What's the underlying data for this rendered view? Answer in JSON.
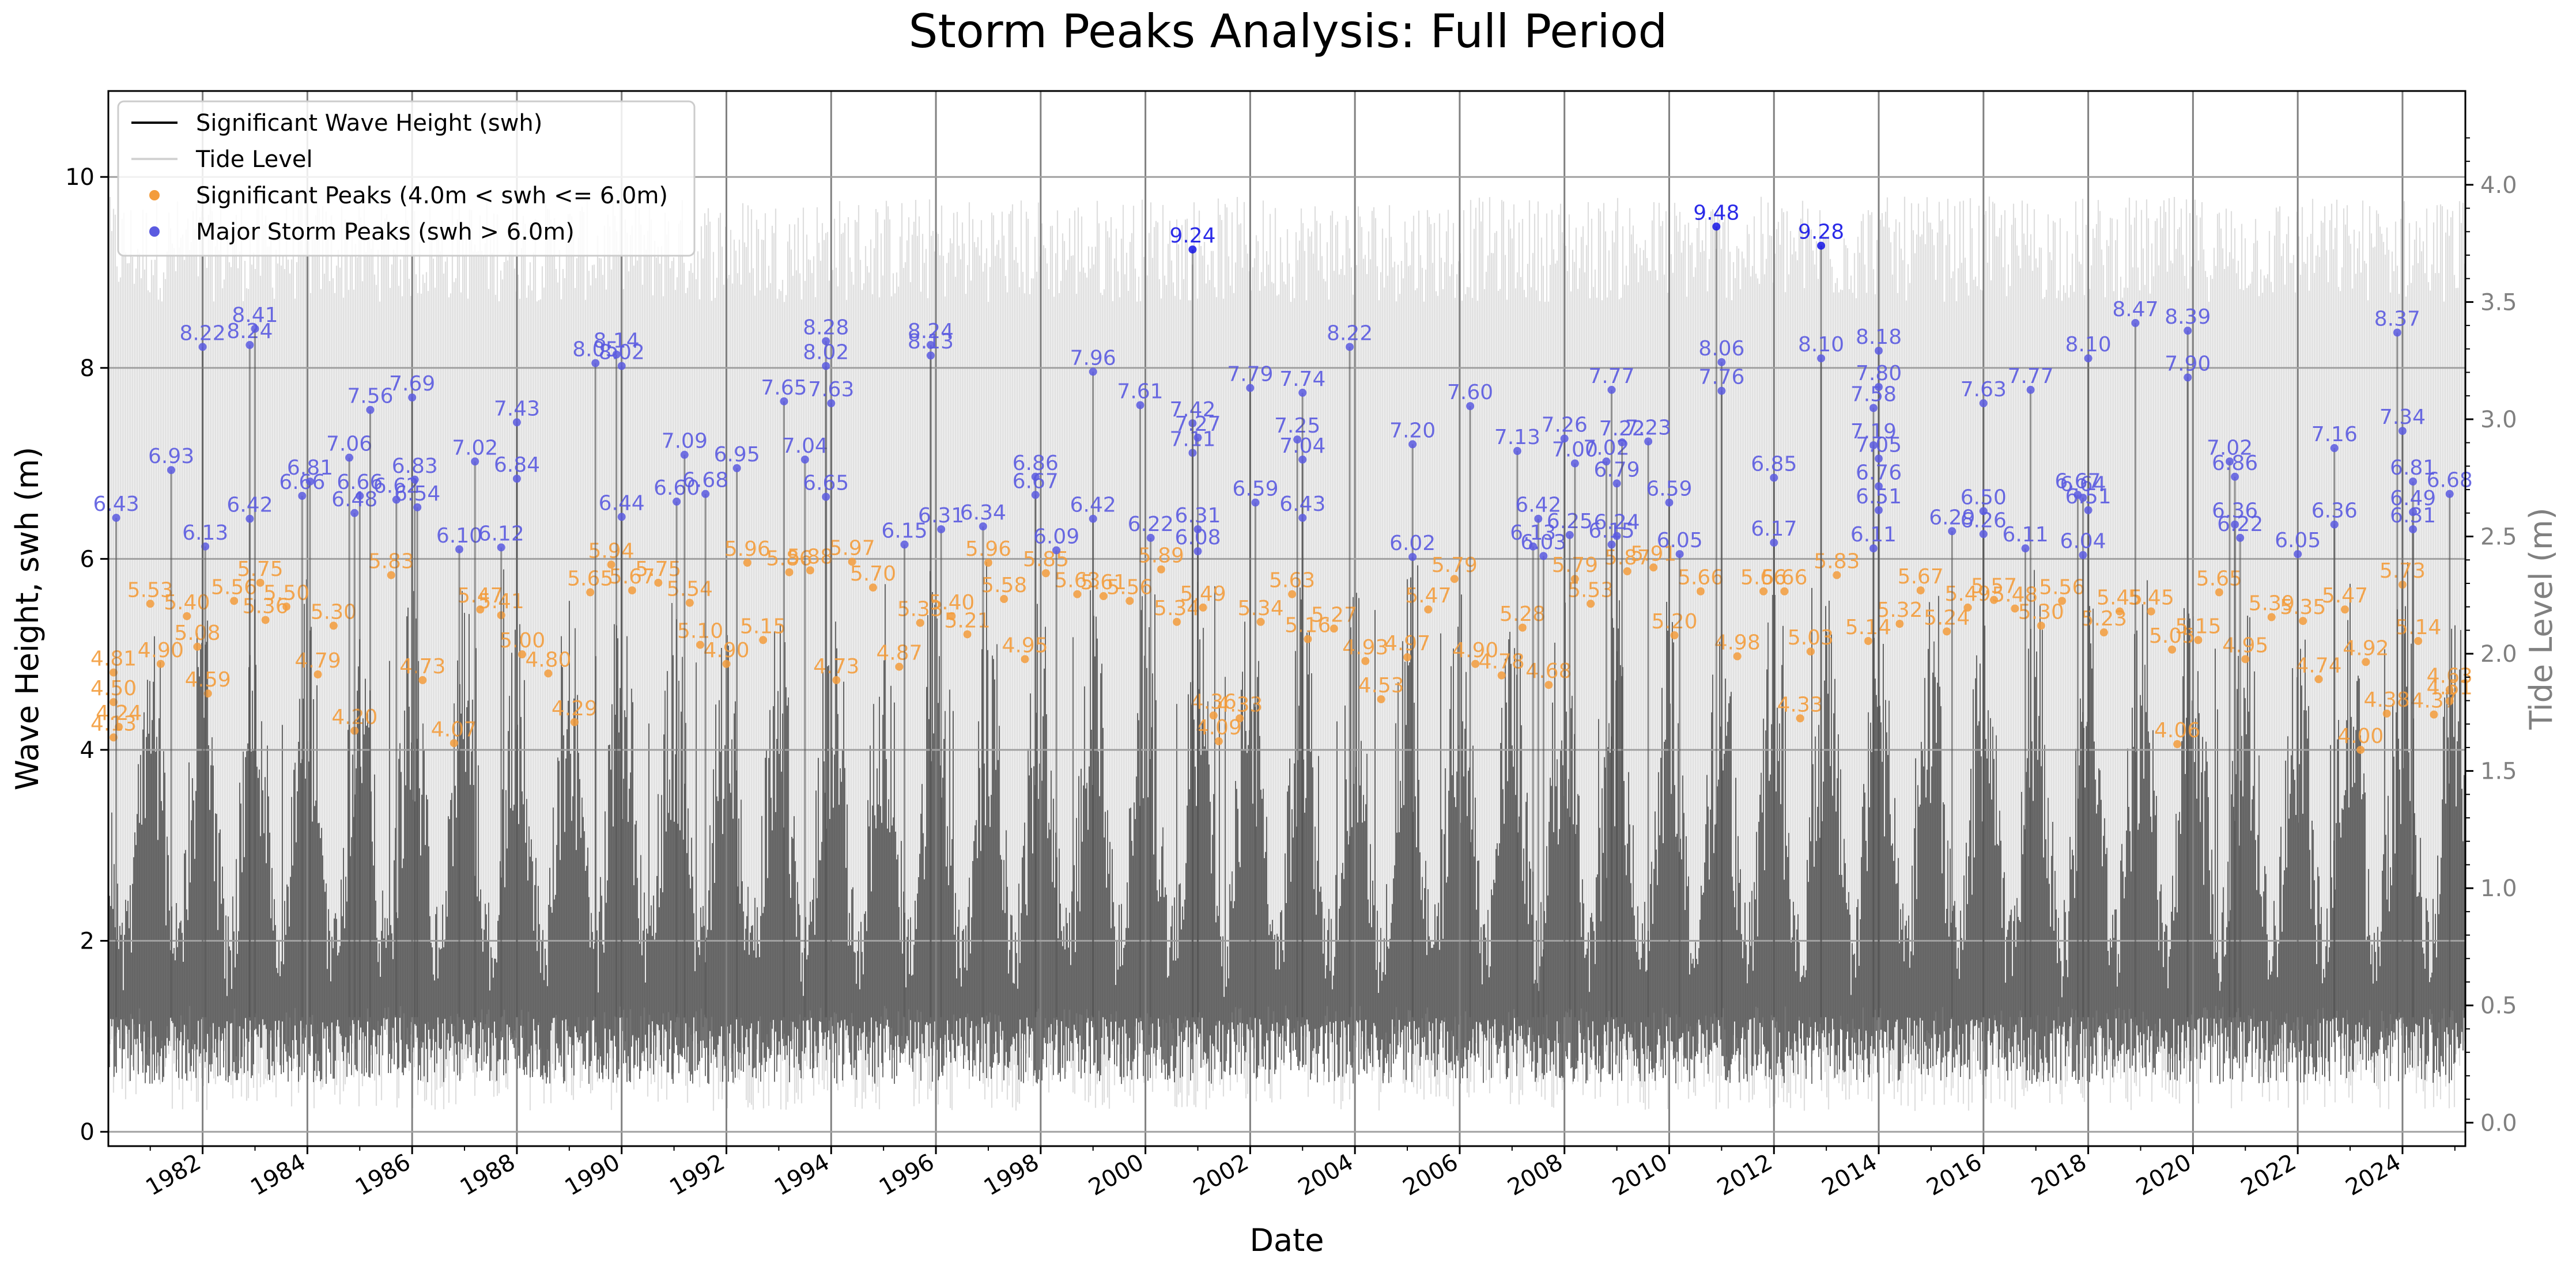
{
  "chart_data": {
    "type": "line",
    "title": "Storm Peaks Analysis: Full Period",
    "xlabel": "Date",
    "ylabel": "Wave Height, swh (m)",
    "y2label": "Tide Level (m)",
    "xlim": [
      1980.2,
      2025.2
    ],
    "ylim": [
      -0.15,
      10.9
    ],
    "y2lim": [
      -0.1,
      4.4
    ],
    "x_ticks": [
      "1982",
      "1984",
      "1986",
      "1988",
      "1990",
      "1992",
      "1994",
      "1996",
      "1998",
      "2000",
      "2002",
      "2004",
      "2006",
      "2008",
      "2010",
      "2012",
      "2014",
      "2016",
      "2018",
      "2020",
      "2022",
      "2024"
    ],
    "y_ticks": [
      "0",
      "2",
      "4",
      "6",
      "8",
      "10"
    ],
    "y2_ticks": [
      "0.0",
      "0.5",
      "1.0",
      "1.5",
      "2.0",
      "2.5",
      "3.0",
      "3.5",
      "4.0"
    ],
    "grid": true,
    "legend": {
      "placement": "top-left",
      "entries": [
        {
          "label": "Significant Wave Height (swh)",
          "color": "#000000",
          "kind": "line"
        },
        {
          "label": "Tide Level",
          "color": "#d3d3d3",
          "kind": "line"
        },
        {
          "label": "Significant Peaks (4.0m < swh <= 6.0m)",
          "color": "#f39c3c",
          "kind": "dot"
        },
        {
          "label": "Major Storm Peaks (swh > 6.0m)",
          "color": "#5a5ae0",
          "kind": "dot"
        }
      ]
    },
    "colors": {
      "swh": "#000000",
      "tide": "#d3d3d3",
      "significant": "#f39c3c",
      "major": "#5a5ae0",
      "major_extreme": "#1414e6"
    },
    "series": [
      {
        "name": "Major Storm Peaks (swh > 6.0m)",
        "points": [
          {
            "x": 1980.35,
            "y": 6.43
          },
          {
            "x": 1981.4,
            "y": 6.93
          },
          {
            "x": 1982.05,
            "y": 6.13
          },
          {
            "x": 1982.0,
            "y": 8.22
          },
          {
            "x": 1982.9,
            "y": 8.24
          },
          {
            "x": 1983.0,
            "y": 8.41
          },
          {
            "x": 1982.9,
            "y": 6.42
          },
          {
            "x": 1983.9,
            "y": 6.66
          },
          {
            "x": 1984.05,
            "y": 6.81
          },
          {
            "x": 1984.8,
            "y": 7.06
          },
          {
            "x": 1985.0,
            "y": 6.66
          },
          {
            "x": 1984.9,
            "y": 6.48
          },
          {
            "x": 1985.2,
            "y": 7.56
          },
          {
            "x": 1986.0,
            "y": 7.69
          },
          {
            "x": 1985.7,
            "y": 6.62
          },
          {
            "x": 1986.05,
            "y": 6.83
          },
          {
            "x": 1986.1,
            "y": 6.54
          },
          {
            "x": 1986.9,
            "y": 6.1
          },
          {
            "x": 1987.2,
            "y": 7.02
          },
          {
            "x": 1988.0,
            "y": 7.43
          },
          {
            "x": 1988.0,
            "y": 6.84
          },
          {
            "x": 1987.7,
            "y": 6.12
          },
          {
            "x": 1989.5,
            "y": 8.05
          },
          {
            "x": 1989.9,
            "y": 8.14
          },
          {
            "x": 1990.0,
            "y": 8.02
          },
          {
            "x": 1990.0,
            "y": 6.44
          },
          {
            "x": 1991.05,
            "y": 6.6
          },
          {
            "x": 1991.2,
            "y": 7.09
          },
          {
            "x": 1991.6,
            "y": 6.68
          },
          {
            "x": 1992.2,
            "y": 6.95
          },
          {
            "x": 1993.1,
            "y": 7.65
          },
          {
            "x": 1993.5,
            "y": 7.04
          },
          {
            "x": 1993.9,
            "y": 8.28
          },
          {
            "x": 1993.9,
            "y": 8.02
          },
          {
            "x": 1994.0,
            "y": 7.63
          },
          {
            "x": 1993.9,
            "y": 6.65
          },
          {
            "x": 1995.4,
            "y": 6.15
          },
          {
            "x": 1995.9,
            "y": 8.24
          },
          {
            "x": 1995.9,
            "y": 8.13
          },
          {
            "x": 1996.1,
            "y": 6.31
          },
          {
            "x": 1996.9,
            "y": 6.34
          },
          {
            "x": 1997.9,
            "y": 6.86
          },
          {
            "x": 1997.9,
            "y": 6.67
          },
          {
            "x": 1998.3,
            "y": 6.09
          },
          {
            "x": 1999.0,
            "y": 7.96
          },
          {
            "x": 1999.0,
            "y": 6.42
          },
          {
            "x": 1999.9,
            "y": 7.61
          },
          {
            "x": 2000.1,
            "y": 6.22
          },
          {
            "x": 2000.9,
            "y": 7.42
          },
          {
            "x": 2001.0,
            "y": 7.27
          },
          {
            "x": 2000.9,
            "y": 7.11
          },
          {
            "x": 2001.0,
            "y": 6.31
          },
          {
            "x": 2001.0,
            "y": 6.08
          },
          {
            "x": 2002.0,
            "y": 7.79
          },
          {
            "x": 2002.1,
            "y": 6.59
          },
          {
            "x": 2002.9,
            "y": 7.25
          },
          {
            "x": 2003.0,
            "y": 7.74
          },
          {
            "x": 2003.0,
            "y": 7.04
          },
          {
            "x": 2003.0,
            "y": 6.43
          },
          {
            "x": 2003.9,
            "y": 8.22
          },
          {
            "x": 2005.1,
            "y": 7.2
          },
          {
            "x": 2005.1,
            "y": 6.02
          },
          {
            "x": 2006.2,
            "y": 7.6
          },
          {
            "x": 2007.1,
            "y": 7.13
          },
          {
            "x": 2007.5,
            "y": 6.42
          },
          {
            "x": 2007.4,
            "y": 6.13
          },
          {
            "x": 2007.6,
            "y": 6.03
          },
          {
            "x": 2008.1,
            "y": 6.25
          },
          {
            "x": 2008.0,
            "y": 7.26
          },
          {
            "x": 2008.2,
            "y": 7.0
          },
          {
            "x": 2008.9,
            "y": 7.77
          },
          {
            "x": 2008.8,
            "y": 7.02
          },
          {
            "x": 2009.0,
            "y": 6.79
          },
          {
            "x": 2009.1,
            "y": 7.22
          },
          {
            "x": 2009.6,
            "y": 7.23
          },
          {
            "x": 2009.0,
            "y": 6.24
          },
          {
            "x": 2008.9,
            "y": 6.15
          },
          {
            "x": 2010.0,
            "y": 6.59
          },
          {
            "x": 2010.2,
            "y": 6.05
          },
          {
            "x": 2010.9,
            "y": 9.48
          },
          {
            "x": 2011.0,
            "y": 8.06
          },
          {
            "x": 2011.0,
            "y": 7.76
          },
          {
            "x": 2012.0,
            "y": 6.85
          },
          {
            "x": 2012.0,
            "y": 6.17
          },
          {
            "x": 2012.9,
            "y": 9.28
          },
          {
            "x": 2012.9,
            "y": 8.1
          },
          {
            "x": 2014.0,
            "y": 8.18
          },
          {
            "x": 2014.0,
            "y": 7.8
          },
          {
            "x": 2013.9,
            "y": 7.58
          },
          {
            "x": 2013.9,
            "y": 7.19
          },
          {
            "x": 2014.0,
            "y": 7.05
          },
          {
            "x": 2014.0,
            "y": 6.76
          },
          {
            "x": 2014.0,
            "y": 6.51
          },
          {
            "x": 2013.9,
            "y": 6.11
          },
          {
            "x": 2015.4,
            "y": 6.29
          },
          {
            "x": 2016.0,
            "y": 7.63
          },
          {
            "x": 2016.0,
            "y": 6.5
          },
          {
            "x": 2016.0,
            "y": 6.26
          },
          {
            "x": 2016.9,
            "y": 7.77
          },
          {
            "x": 2016.8,
            "y": 6.11
          },
          {
            "x": 2017.8,
            "y": 6.67
          },
          {
            "x": 2017.9,
            "y": 6.64
          },
          {
            "x": 2018.0,
            "y": 8.1
          },
          {
            "x": 2018.0,
            "y": 6.51
          },
          {
            "x": 2017.9,
            "y": 6.04
          },
          {
            "x": 2018.9,
            "y": 8.47
          },
          {
            "x": 2019.9,
            "y": 8.39
          },
          {
            "x": 2019.9,
            "y": 7.9
          },
          {
            "x": 2020.7,
            "y": 7.02
          },
          {
            "x": 2020.8,
            "y": 6.86
          },
          {
            "x": 2020.8,
            "y": 6.36
          },
          {
            "x": 2020.9,
            "y": 6.22
          },
          {
            "x": 2022.0,
            "y": 6.05
          },
          {
            "x": 2022.7,
            "y": 7.16
          },
          {
            "x": 2022.7,
            "y": 6.36
          },
          {
            "x": 2023.9,
            "y": 8.37
          },
          {
            "x": 2024.0,
            "y": 7.34
          },
          {
            "x": 2024.2,
            "y": 6.81
          },
          {
            "x": 2024.2,
            "y": 6.49
          },
          {
            "x": 2024.2,
            "y": 6.31
          },
          {
            "x": 2024.9,
            "y": 6.68
          },
          {
            "x": 2000.9,
            "y": 9.24
          }
        ]
      },
      {
        "name": "Significant Peaks (4.0m < swh <= 6.0m)",
        "points": [
          {
            "x": 1980.3,
            "y": 4.81
          },
          {
            "x": 1980.3,
            "y": 4.5
          },
          {
            "x": 1980.4,
            "y": 4.24
          },
          {
            "x": 1980.3,
            "y": 4.13
          },
          {
            "x": 1981.0,
            "y": 5.53
          },
          {
            "x": 1981.2,
            "y": 4.9
          },
          {
            "x": 1981.7,
            "y": 5.4
          },
          {
            "x": 1981.9,
            "y": 5.08
          },
          {
            "x": 1982.1,
            "y": 4.59
          },
          {
            "x": 1982.6,
            "y": 5.56
          },
          {
            "x": 1983.1,
            "y": 5.75
          },
          {
            "x": 1983.2,
            "y": 5.36
          },
          {
            "x": 1983.6,
            "y": 5.5
          },
          {
            "x": 1984.2,
            "y": 4.79
          },
          {
            "x": 1984.5,
            "y": 5.3
          },
          {
            "x": 1984.9,
            "y": 4.2
          },
          {
            "x": 1985.6,
            "y": 5.83
          },
          {
            "x": 1986.2,
            "y": 4.73
          },
          {
            "x": 1986.8,
            "y": 4.07
          },
          {
            "x": 1987.3,
            "y": 5.47
          },
          {
            "x": 1987.7,
            "y": 5.41
          },
          {
            "x": 1988.1,
            "y": 5.0
          },
          {
            "x": 1988.6,
            "y": 4.8
          },
          {
            "x": 1989.1,
            "y": 4.29
          },
          {
            "x": 1989.4,
            "y": 5.65
          },
          {
            "x": 1989.8,
            "y": 5.94
          },
          {
            "x": 1990.2,
            "y": 5.67
          },
          {
            "x": 1990.7,
            "y": 5.75
          },
          {
            "x": 1991.3,
            "y": 5.54
          },
          {
            "x": 1991.5,
            "y": 5.1
          },
          {
            "x": 1992.0,
            "y": 4.9
          },
          {
            "x": 1992.4,
            "y": 5.96
          },
          {
            "x": 1992.7,
            "y": 5.15
          },
          {
            "x": 1993.2,
            "y": 5.86
          },
          {
            "x": 1993.6,
            "y": 5.88
          },
          {
            "x": 1994.1,
            "y": 4.73
          },
          {
            "x": 1994.4,
            "y": 5.97
          },
          {
            "x": 1994.8,
            "y": 5.7
          },
          {
            "x": 1995.3,
            "y": 4.87
          },
          {
            "x": 1995.7,
            "y": 5.33
          },
          {
            "x": 1996.3,
            "y": 5.4
          },
          {
            "x": 1996.6,
            "y": 5.21
          },
          {
            "x": 1997.0,
            "y": 5.96
          },
          {
            "x": 1997.3,
            "y": 5.58
          },
          {
            "x": 1997.7,
            "y": 4.95
          },
          {
            "x": 1998.1,
            "y": 5.85
          },
          {
            "x": 1998.7,
            "y": 5.63
          },
          {
            "x": 1999.2,
            "y": 5.61
          },
          {
            "x": 1999.7,
            "y": 5.56
          },
          {
            "x": 2000.3,
            "y": 5.89
          },
          {
            "x": 2000.6,
            "y": 5.34
          },
          {
            "x": 2001.1,
            "y": 5.49
          },
          {
            "x": 2001.3,
            "y": 4.36
          },
          {
            "x": 2001.8,
            "y": 4.33
          },
          {
            "x": 2002.2,
            "y": 5.34
          },
          {
            "x": 2002.8,
            "y": 5.63
          },
          {
            "x": 2003.1,
            "y": 5.16
          },
          {
            "x": 2003.6,
            "y": 5.27
          },
          {
            "x": 2004.2,
            "y": 4.93
          },
          {
            "x": 2004.5,
            "y": 4.53
          },
          {
            "x": 2005.0,
            "y": 4.97
          },
          {
            "x": 2005.4,
            "y": 5.47
          },
          {
            "x": 2005.9,
            "y": 5.79
          },
          {
            "x": 2006.3,
            "y": 4.9
          },
          {
            "x": 2006.8,
            "y": 4.78
          },
          {
            "x": 2007.2,
            "y": 5.28
          },
          {
            "x": 2007.7,
            "y": 4.68
          },
          {
            "x": 2008.2,
            "y": 5.79
          },
          {
            "x": 2008.5,
            "y": 5.53
          },
          {
            "x": 2009.2,
            "y": 5.87
          },
          {
            "x": 2009.7,
            "y": 5.91
          },
          {
            "x": 2010.1,
            "y": 5.2
          },
          {
            "x": 2010.6,
            "y": 5.66
          },
          {
            "x": 2011.3,
            "y": 4.98
          },
          {
            "x": 2011.8,
            "y": 5.66
          },
          {
            "x": 2012.2,
            "y": 5.66
          },
          {
            "x": 2012.7,
            "y": 5.03
          },
          {
            "x": 2013.2,
            "y": 5.83
          },
          {
            "x": 2013.8,
            "y": 5.14
          },
          {
            "x": 2014.4,
            "y": 5.32
          },
          {
            "x": 2014.8,
            "y": 5.67
          },
          {
            "x": 2015.3,
            "y": 5.24
          },
          {
            "x": 2015.7,
            "y": 5.49
          },
          {
            "x": 2016.2,
            "y": 5.57
          },
          {
            "x": 2016.6,
            "y": 5.48
          },
          {
            "x": 2017.1,
            "y": 5.3
          },
          {
            "x": 2017.5,
            "y": 5.56
          },
          {
            "x": 2018.3,
            "y": 5.23
          },
          {
            "x": 2018.6,
            "y": 5.45
          },
          {
            "x": 2019.2,
            "y": 5.45
          },
          {
            "x": 2019.6,
            "y": 5.05
          },
          {
            "x": 2020.1,
            "y": 5.15
          },
          {
            "x": 2020.5,
            "y": 5.65
          },
          {
            "x": 2021.0,
            "y": 4.95
          },
          {
            "x": 2021.5,
            "y": 5.39
          },
          {
            "x": 2022.1,
            "y": 5.35
          },
          {
            "x": 2022.4,
            "y": 4.74
          },
          {
            "x": 2022.9,
            "y": 5.47
          },
          {
            "x": 2023.3,
            "y": 4.92
          },
          {
            "x": 2023.7,
            "y": 4.38
          },
          {
            "x": 2024.0,
            "y": 5.73
          },
          {
            "x": 2024.3,
            "y": 5.14
          },
          {
            "x": 2024.6,
            "y": 4.37
          },
          {
            "x": 2024.9,
            "y": 4.63
          },
          {
            "x": 2024.9,
            "y": 4.51
          },
          {
            "x": 2001.4,
            "y": 4.09
          },
          {
            "x": 2012.5,
            "y": 4.33
          },
          {
            "x": 2019.7,
            "y": 4.06
          },
          {
            "x": 2023.2,
            "y": 4.0
          }
        ]
      }
    ]
  }
}
